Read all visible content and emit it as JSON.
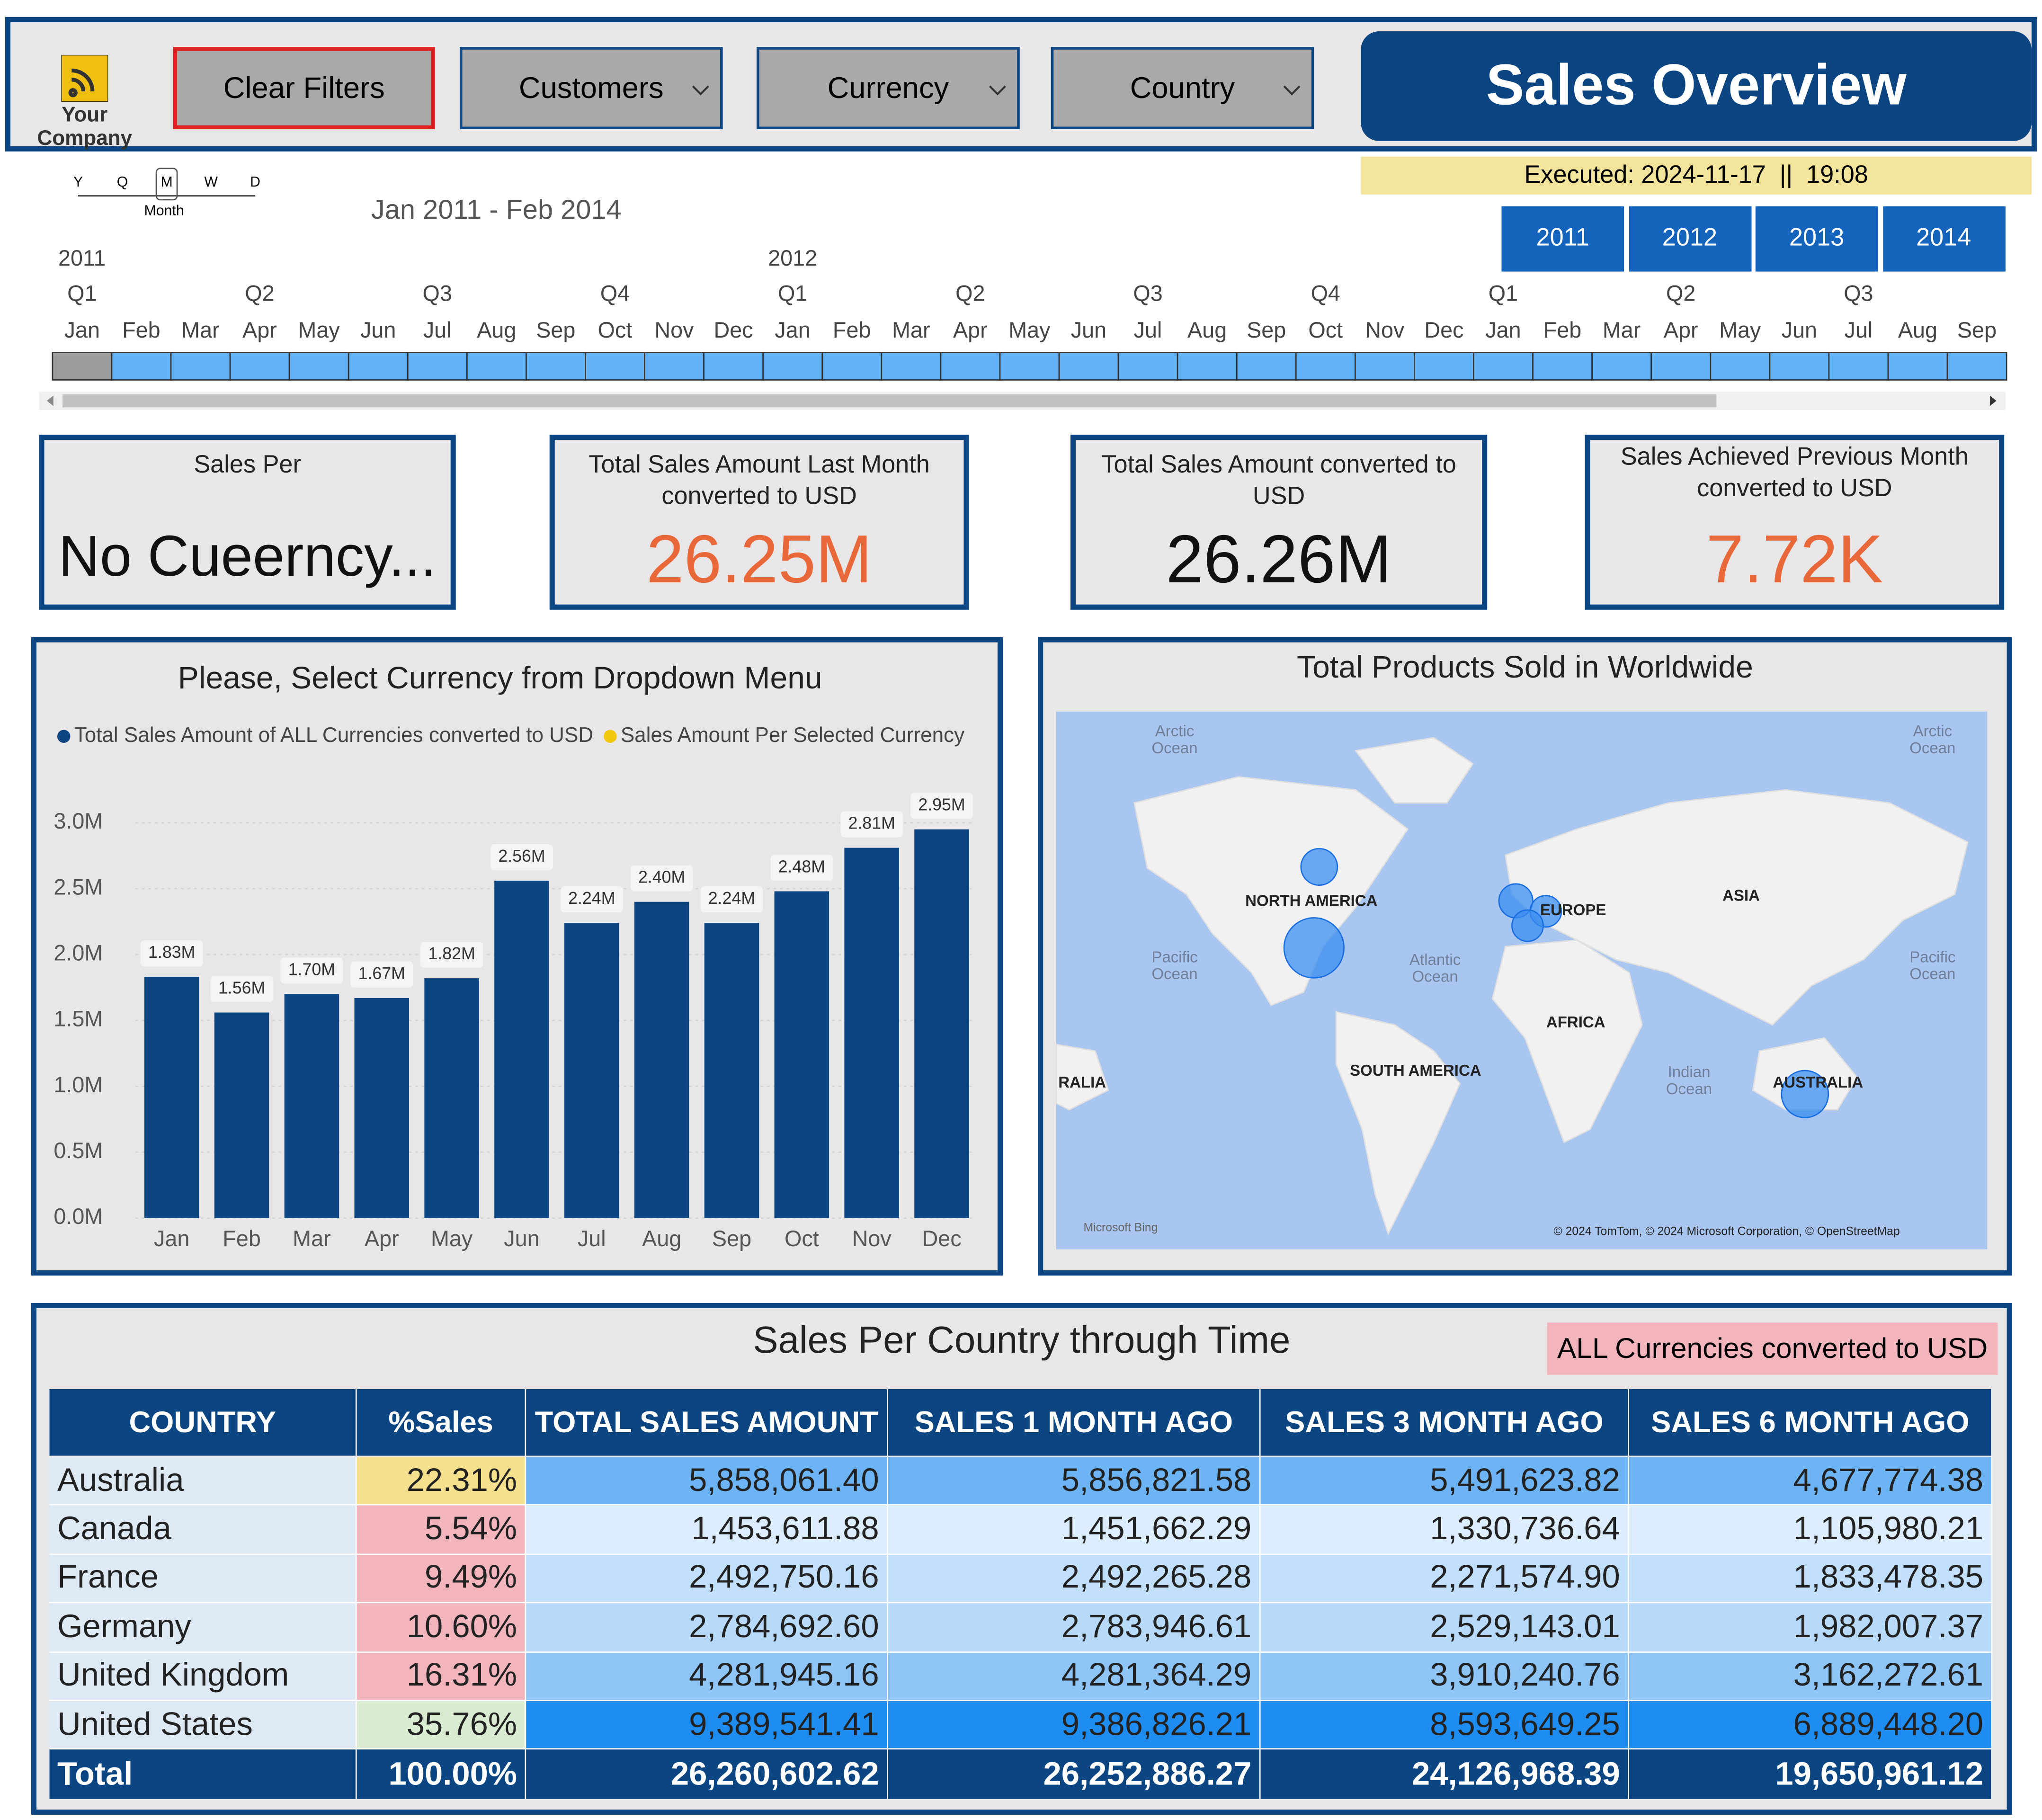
{
  "header": {
    "company": "Your Company",
    "clear_filters": "Clear Filters",
    "dropdowns": [
      "Customers",
      "Currency",
      "Country"
    ],
    "title": "Sales Overview",
    "executed": "Executed: 2024-11-17  ||  19:08",
    "years": [
      "2011",
      "2012",
      "2013",
      "2014"
    ]
  },
  "timeline": {
    "granularity": [
      "Y",
      "Q",
      "M",
      "W",
      "D"
    ],
    "granularity_label": "Month",
    "range": "Jan 2011 - Feb 2014",
    "years": [
      "2011",
      "2012"
    ],
    "quarters": [
      "Q1",
      "Q2",
      "Q3",
      "Q4",
      "Q1",
      "Q2",
      "Q3",
      "Q4",
      "Q1",
      "Q2",
      "Q3"
    ],
    "months": [
      "Jan",
      "Feb",
      "Mar",
      "Apr",
      "May",
      "Jun",
      "Jul",
      "Aug",
      "Sep",
      "Oct",
      "Nov",
      "Dec",
      "Jan",
      "Feb",
      "Mar",
      "Apr",
      "May",
      "Jun",
      "Jul",
      "Aug",
      "Sep",
      "Oct",
      "Nov",
      "Dec",
      "Jan",
      "Feb",
      "Mar",
      "Apr",
      "May",
      "Jun",
      "Jul",
      "Aug",
      "Sep"
    ]
  },
  "cards": [
    {
      "title": "Sales Per",
      "value": "No Cueerncy..."
    },
    {
      "title": "Total Sales Amount Last Month converted to USD",
      "value": "26.25M"
    },
    {
      "title": "Total Sales Amount converted to USD",
      "value": "26.26M"
    },
    {
      "title": "Sales Achieved Previous Month converted to USD",
      "value": "7.72K"
    }
  ],
  "chart_data": {
    "type": "bar",
    "title": "Please, Select Currency from Dropdown Menu",
    "categories": [
      "Jan",
      "Feb",
      "Mar",
      "Apr",
      "May",
      "Jun",
      "Jul",
      "Aug",
      "Sep",
      "Oct",
      "Nov",
      "Dec"
    ],
    "series": [
      {
        "name": "Total Sales Amount of ALL Currencies converted to USD",
        "color": "#0b4582",
        "values": [
          1.83,
          1.56,
          1.7,
          1.67,
          1.82,
          2.56,
          2.24,
          2.4,
          2.24,
          2.48,
          2.81,
          2.95
        ],
        "value_labels": [
          "1.83M",
          "1.56M",
          "1.70M",
          "1.67M",
          "1.82M",
          "2.56M",
          "2.24M",
          "2.40M",
          "2.24M",
          "2.48M",
          "2.81M",
          "2.95M"
        ]
      },
      {
        "name": "Sales Amount Per Selected Currency",
        "color": "#f2c80f",
        "values": [
          null,
          null,
          null,
          null,
          null,
          null,
          null,
          null,
          null,
          null,
          null,
          null
        ]
      }
    ],
    "ylim": [
      0,
      3.2
    ],
    "yticks": [
      {
        "value": 0,
        "label": "0.0M"
      },
      {
        "value": 0.5,
        "label": "0.5M"
      },
      {
        "value": 1,
        "label": "1.0M"
      },
      {
        "value": 1.5,
        "label": "1.5M"
      },
      {
        "value": 2,
        "label": "2.0M"
      },
      {
        "value": 2.5,
        "label": "2.5M"
      },
      {
        "value": 3,
        "label": "3.0M"
      }
    ],
    "grid": true,
    "legend": "top"
  },
  "map": {
    "title": "Total Products Sold in Worldwide",
    "labels": [
      "Arctic Ocean",
      "Arctic Ocean",
      "NORTH AMERICA",
      "EUROPE",
      "ASIA",
      "Pacific Ocean",
      "Atlantic Ocean",
      "Pacific Ocean",
      "AFRICA",
      "SOUTH AMERICA",
      "RALIA",
      "Indian Ocean",
      "AUSTRALIA"
    ],
    "provider": "Microsoft Bing",
    "copyright": "© 2024 TomTom, © 2024 Microsoft Corporation, © OpenStreetMap"
  },
  "table": {
    "title": "Sales Per Country through Time",
    "badge": "ALL Currencies converted to USD",
    "columns": [
      "COUNTRY",
      "%Sales",
      "TOTAL SALES AMOUNT",
      "SALES 1 MONTH AGO",
      "SALES 3 MONTH AGO",
      "SALES 6 MONTH AGO"
    ],
    "rows": [
      [
        "Australia",
        "22.31%",
        "5,858,061.40",
        "5,856,821.58",
        "5,491,623.82",
        "4,677,774.38"
      ],
      [
        "Canada",
        "5.54%",
        "1,453,611.88",
        "1,451,662.29",
        "1,330,736.64",
        "1,105,980.21"
      ],
      [
        "France",
        "9.49%",
        "2,492,750.16",
        "2,492,265.28",
        "2,271,574.90",
        "1,833,478.35"
      ],
      [
        "Germany",
        "10.60%",
        "2,784,692.60",
        "2,783,946.61",
        "2,529,143.01",
        "1,982,007.37"
      ],
      [
        "United Kingdom",
        "16.31%",
        "4,281,945.16",
        "4,281,364.29",
        "3,910,240.76",
        "3,162,272.61"
      ],
      [
        "United States",
        "35.76%",
        "9,389,541.41",
        "9,386,826.21",
        "8,593,649.25",
        "6,889,448.20"
      ]
    ],
    "total": [
      "Total",
      "100.00%",
      "26,260,602.62",
      "26,252,886.27",
      "24,126,968.39",
      "19,650,961.12"
    ]
  }
}
